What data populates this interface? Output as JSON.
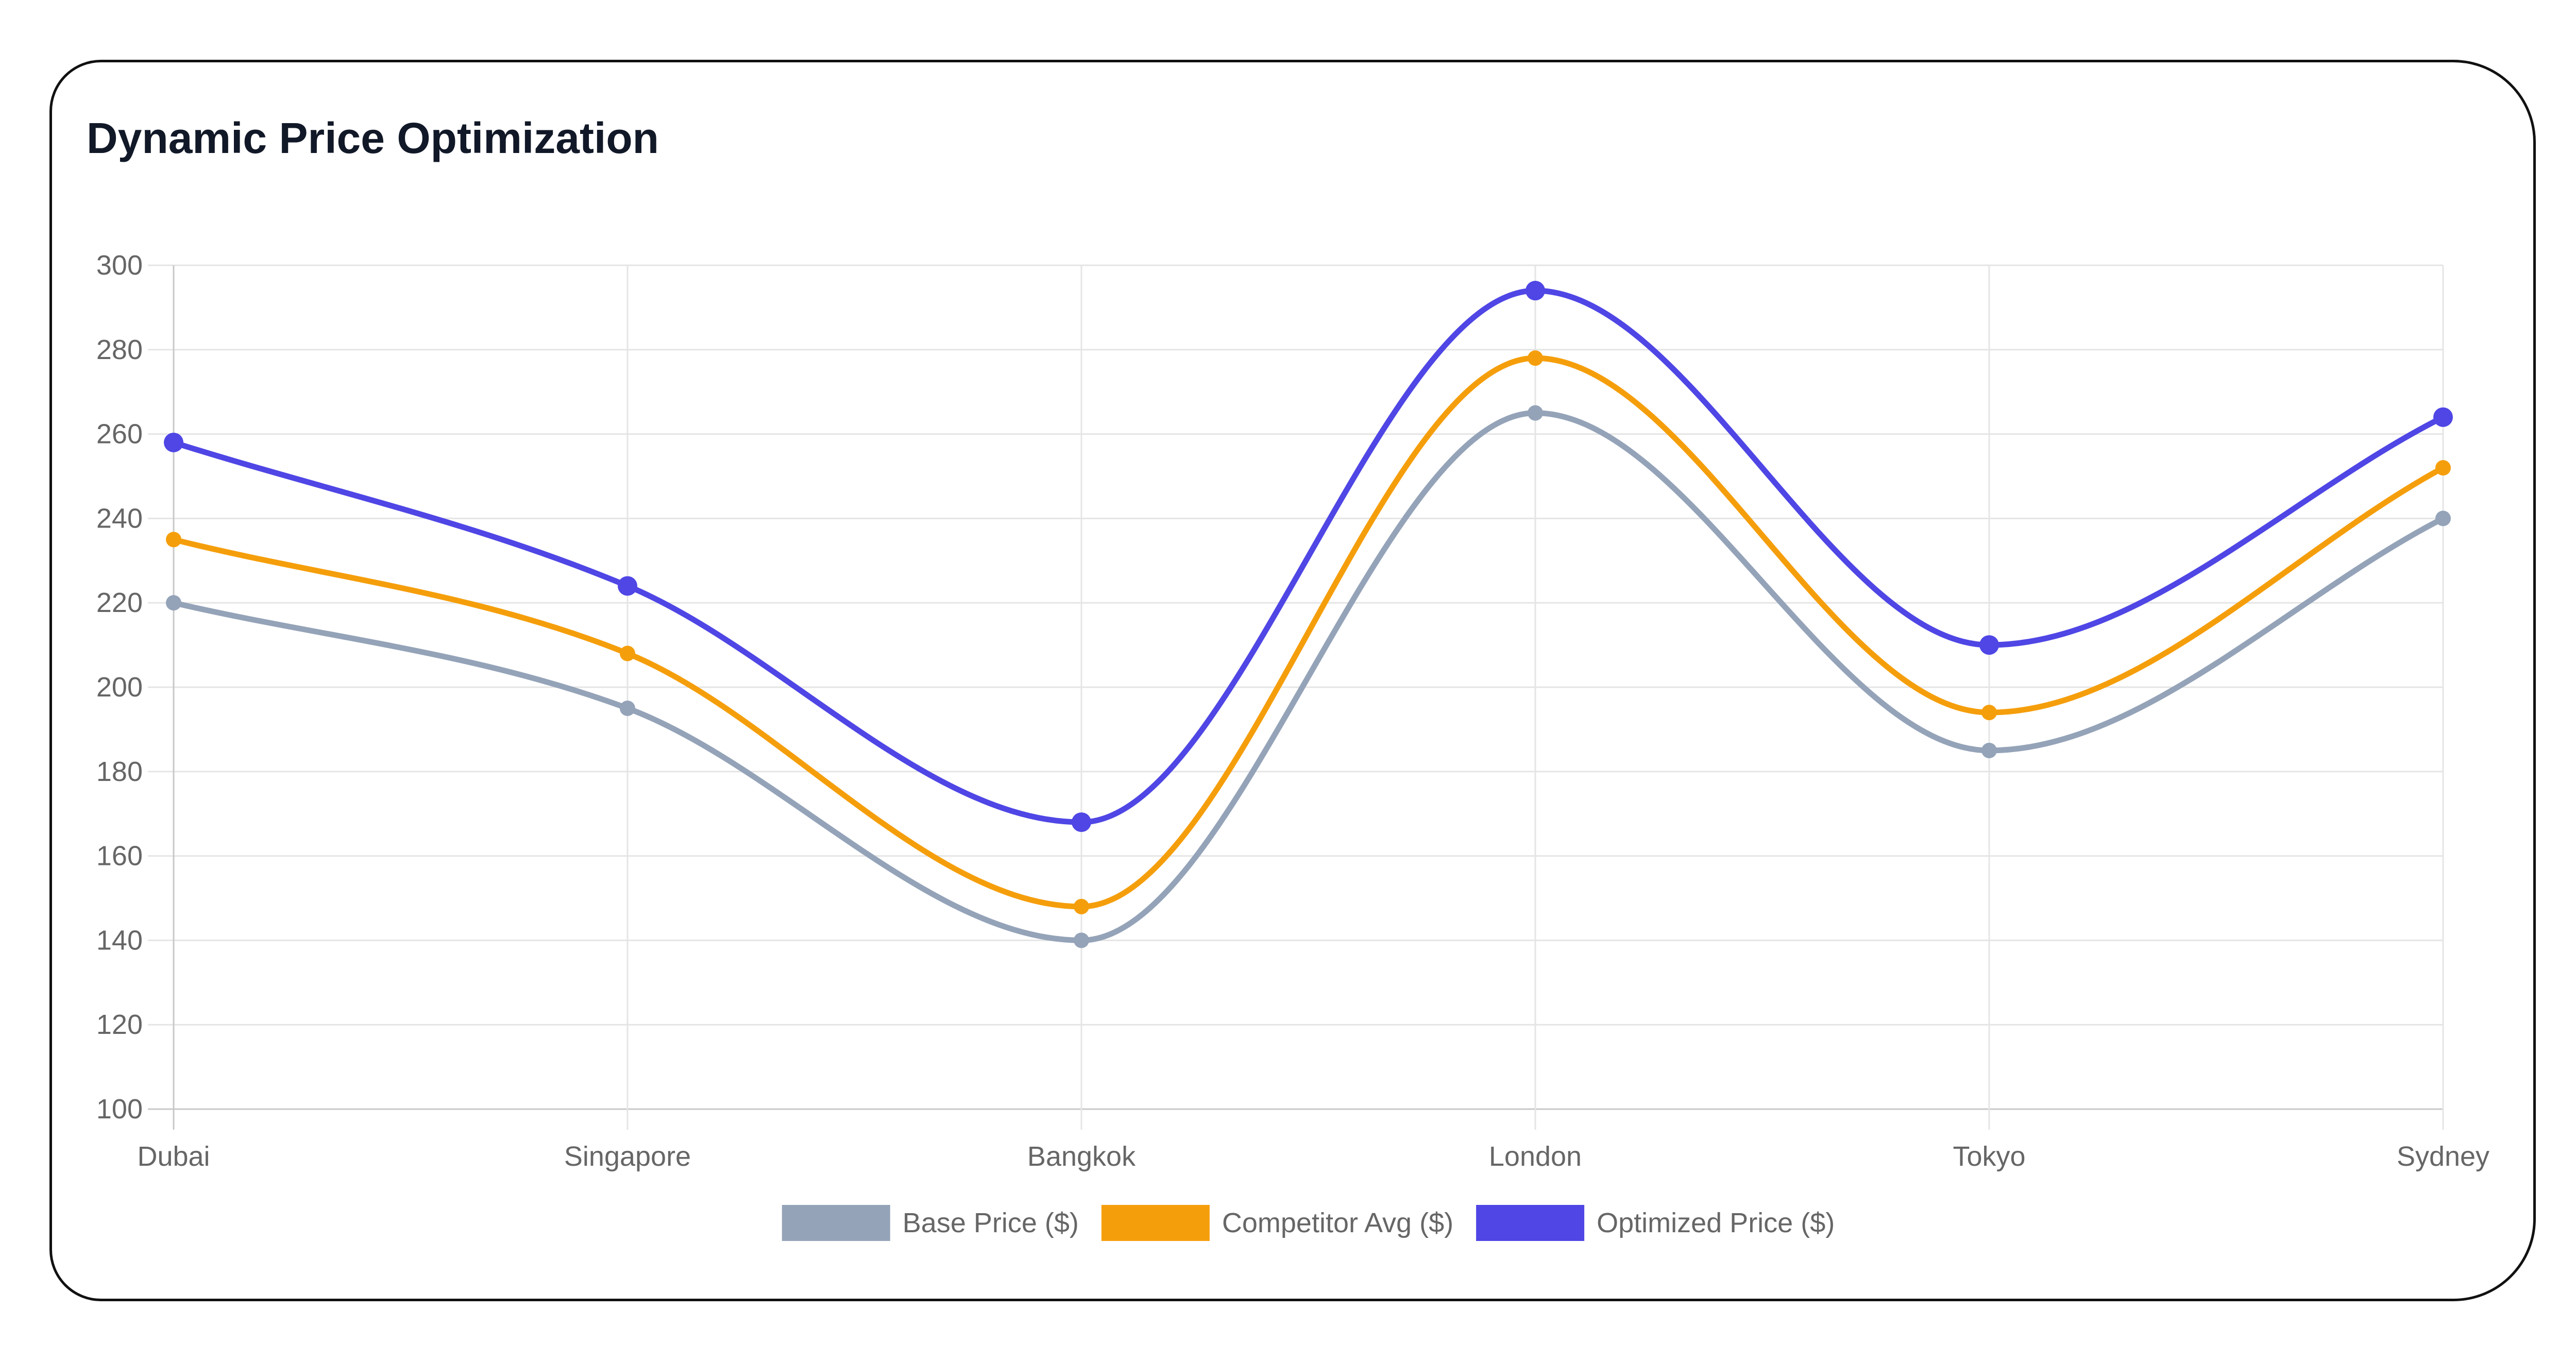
{
  "chart_data": {
    "type": "line",
    "title": "Dynamic Price Optimization",
    "categories": [
      "Dubai",
      "Singapore",
      "Bangkok",
      "London",
      "Tokyo",
      "Sydney"
    ],
    "series": [
      {
        "name": "Base Price ($)",
        "color": "#94a3b8",
        "values": [
          220,
          195,
          140,
          265,
          185,
          240
        ]
      },
      {
        "name": "Competitor Avg ($)",
        "color": "#f59e0b",
        "values": [
          235,
          208,
          148,
          278,
          194,
          252
        ]
      },
      {
        "name": "Optimized Price ($)",
        "color": "#4f46e5",
        "values": [
          258,
          224,
          168,
          294,
          210,
          264
        ]
      }
    ],
    "ylim": [
      100,
      300
    ],
    "yticks": [
      100,
      120,
      140,
      160,
      180,
      200,
      220,
      240,
      260,
      280,
      300
    ],
    "xlabel": "",
    "ylabel": "",
    "grid": true,
    "legend": "bottom",
    "curve": "smooth"
  }
}
